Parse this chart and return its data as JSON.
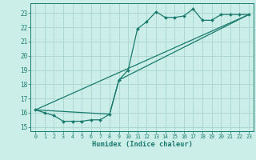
{
  "title": "",
  "xlabel": "Humidex (Indice chaleur)",
  "background_color": "#cceee8",
  "grid_color": "#aad4ce",
  "line_color": "#1a7a6e",
  "xlim": [
    -0.5,
    23.5
  ],
  "ylim": [
    14.7,
    23.7
  ],
  "yticks": [
    15,
    16,
    17,
    18,
    19,
    20,
    21,
    22,
    23
  ],
  "xticks": [
    0,
    1,
    2,
    3,
    4,
    5,
    6,
    7,
    8,
    9,
    10,
    11,
    12,
    13,
    14,
    15,
    16,
    17,
    18,
    19,
    20,
    21,
    22,
    23
  ],
  "series1_x": [
    0,
    1,
    2,
    3,
    4,
    5,
    6,
    7,
    8,
    9,
    10,
    11,
    12,
    13,
    14,
    15,
    16,
    17,
    18,
    19,
    20,
    21,
    22,
    23
  ],
  "series1_y": [
    16.2,
    16.0,
    15.8,
    15.4,
    15.4,
    15.4,
    15.5,
    15.5,
    15.9,
    18.3,
    19.0,
    21.9,
    22.4,
    23.1,
    22.7,
    22.7,
    22.8,
    23.3,
    22.5,
    22.5,
    22.9,
    22.9,
    22.9,
    22.9
  ],
  "series2_x": [
    0,
    23
  ],
  "series2_y": [
    16.2,
    22.9
  ],
  "series3_x": [
    0,
    8,
    9,
    23
  ],
  "series3_y": [
    16.2,
    15.9,
    18.3,
    22.9
  ],
  "marker": "D",
  "markersize": 2.0,
  "linewidth": 0.9
}
